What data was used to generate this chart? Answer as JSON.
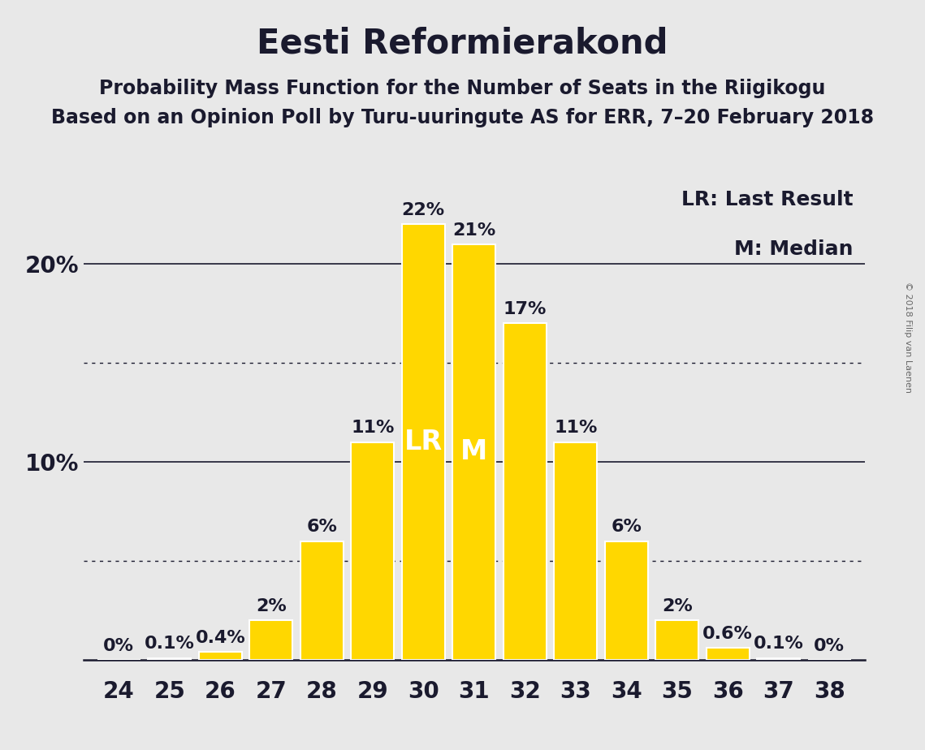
{
  "title": "Eesti Reformierakond",
  "subtitle1": "Probability Mass Function for the Number of Seats in the Riigikogu",
  "subtitle2": "Based on an Opinion Poll by Turu-uuringute AS for ERR, 7–20 February 2018",
  "copyright": "© 2018 Filip van Laenen",
  "seats": [
    24,
    25,
    26,
    27,
    28,
    29,
    30,
    31,
    32,
    33,
    34,
    35,
    36,
    37,
    38
  ],
  "probabilities": [
    0.0,
    0.1,
    0.4,
    2.0,
    6.0,
    11.0,
    22.0,
    21.0,
    17.0,
    11.0,
    6.0,
    2.0,
    0.6,
    0.1,
    0.0
  ],
  "labels": [
    "0%",
    "0.1%",
    "0.4%",
    "2%",
    "6%",
    "11%",
    "22%",
    "21%",
    "17%",
    "11%",
    "6%",
    "2%",
    "0.6%",
    "0.1%",
    "0%"
  ],
  "bar_color": "#FFD700",
  "background_color": "#E8E8E8",
  "text_color": "#1a1a2e",
  "lr_seat": 30,
  "median_seat": 31,
  "lr_label": "LR",
  "median_label": "M",
  "legend_lr": "LR: Last Result",
  "legend_m": "M: Median",
  "ylim": [
    0,
    25
  ],
  "ytick_positions": [
    10.0,
    20.0
  ],
  "ytick_labels": [
    "10%",
    "20%"
  ],
  "solid_lines": [
    10.0,
    20.0
  ],
  "dotted_lines": [
    5.0,
    15.0
  ],
  "title_fontsize": 30,
  "subtitle_fontsize": 17,
  "tick_fontsize": 20,
  "bar_label_fontsize": 16,
  "lr_m_fontsize": 24,
  "legend_fontsize": 18
}
